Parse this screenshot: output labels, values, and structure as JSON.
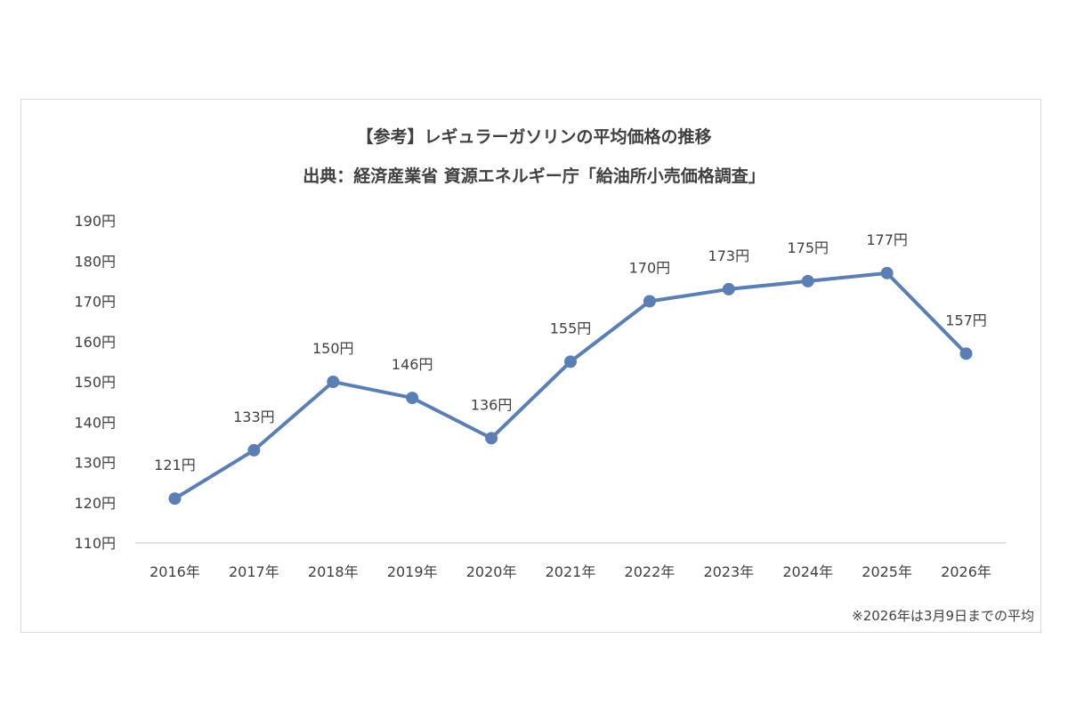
{
  "chart_data": {
    "type": "line",
    "title": "【参考】レギュラーガソリンの平均価格の推移",
    "subtitle": "出典：経済産業省 資源エネルギー庁「給油所小売価格調査」",
    "note": "※2026年は3月9日までの平均",
    "categories": [
      "2016年",
      "2017年",
      "2018年",
      "2019年",
      "2020年",
      "2021年",
      "2022年",
      "2023年",
      "2024年",
      "2025年",
      "2026年"
    ],
    "series": [
      {
        "values": [
          121,
          133,
          150,
          146,
          136,
          155,
          170,
          173,
          175,
          177,
          157
        ],
        "labels": [
          "121円",
          "133円",
          "150円",
          "146円",
          "136円",
          "155円",
          "170円",
          "173円",
          "175円",
          "177円",
          "157円"
        ],
        "color": "#5b7fb5"
      }
    ],
    "y_ticks": [
      "110円",
      "120円",
      "130円",
      "140円",
      "150円",
      "160円",
      "170円",
      "180円",
      "190円"
    ],
    "ylim": [
      110,
      190
    ],
    "grid": false,
    "axis_color": "#d9d9d9"
  }
}
